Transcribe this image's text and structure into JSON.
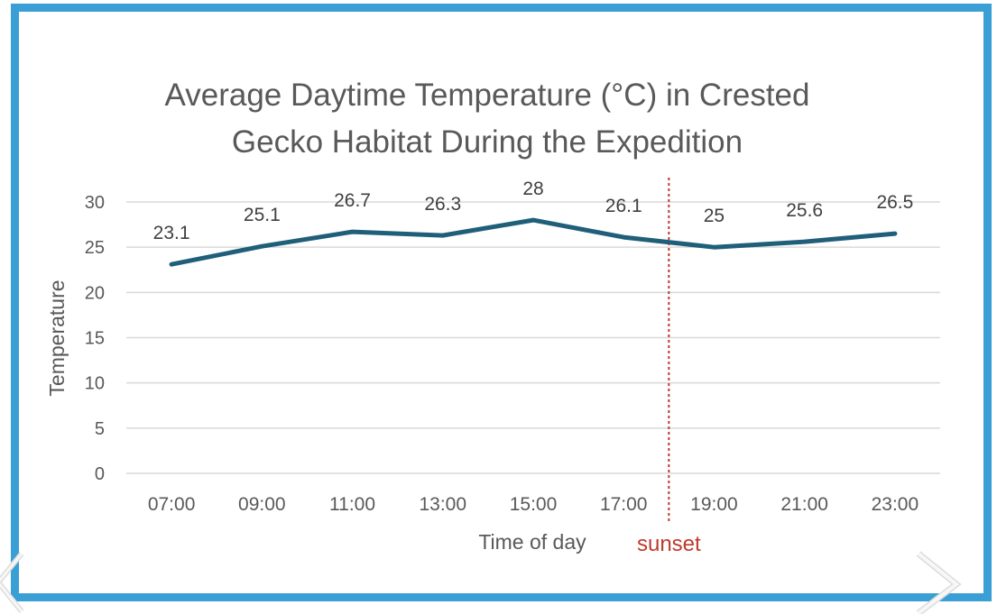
{
  "chart_data": {
    "type": "line",
    "title": "Average Daytime Temperature (°C) in Crested\nGecko Habitat During the Expedition",
    "xlabel": "Time of day",
    "ylabel": "Temperature",
    "categories": [
      "07:00",
      "09:00",
      "11:00",
      "13:00",
      "15:00",
      "17:00",
      "19:00",
      "21:00",
      "23:00"
    ],
    "series": [
      {
        "values": [
          23.1,
          25.1,
          26.7,
          26.3,
          28,
          26.1,
          25,
          25.6,
          26.5
        ],
        "color": "#1f5f7a"
      }
    ],
    "data_labels": [
      "23.1",
      "25.1",
      "26.7",
      "26.3",
      "28",
      "26.1",
      "25",
      "25.6",
      "26.5"
    ],
    "ylim": [
      0,
      30
    ],
    "yticks": [
      0,
      5,
      10,
      15,
      20,
      25,
      30
    ],
    "grid": true,
    "legend": "none",
    "annotation": {
      "text": "sunset",
      "between_categories": [
        "17:00",
        "19:00"
      ],
      "color": "#c0392b",
      "style": "dotted vertical line"
    }
  },
  "frame_color": "#3a9fd4",
  "nav": {
    "prev_icon": "chevron-left-icon",
    "next_icon": "chevron-right-icon"
  }
}
